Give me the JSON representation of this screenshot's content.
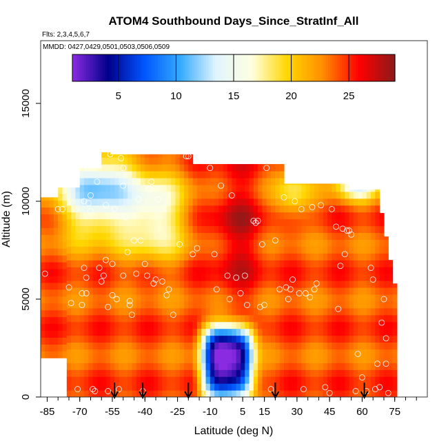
{
  "chart_data": {
    "type": "heatmap",
    "title": "ATOM4 Southbound Days_Since_StratInf_All",
    "subtitle_flights": "Flts: 2,3,4,5,6,7",
    "subtitle_dates": "MMDD: 0427,0429,0501,0503,0506,0509",
    "xlabel": "Latitude (deg N)",
    "ylabel": "Altitude (m)",
    "xlim": [
      -88,
      90
    ],
    "ylim": [
      0,
      17500
    ],
    "x_ticks": [
      -85,
      -70,
      -55,
      -40,
      -25,
      -10,
      5,
      15,
      30,
      45,
      60,
      75
    ],
    "x_tick_labels": [
      "-85",
      "-70",
      "-55",
      "-40",
      "-25",
      "-10",
      "5",
      "15",
      "30",
      "45",
      "60",
      "75"
    ],
    "y_ticks": [
      0,
      5000,
      10000,
      15000
    ],
    "y_tick_labels": [
      "0",
      "5000",
      "10000",
      "15000"
    ],
    "colorbar": {
      "range": [
        1,
        29
      ],
      "ticks": [
        5,
        10,
        15,
        20,
        25
      ],
      "tick_labels": [
        "5",
        "10",
        "15",
        "20",
        "25"
      ],
      "colors": [
        "#8a2be2",
        "#00008b",
        "#0055ff",
        "#33aaff",
        "#e0f4ff",
        "#ffffe0",
        "#ffd700",
        "#ff8c00",
        "#ff0000",
        "#8b1a1a"
      ]
    },
    "arrow_latitudes": [
      -54,
      -41,
      -20,
      20,
      61
    ],
    "field_description_values": {
      "upper_left_values": 13,
      "background": 24,
      "core_high": 27,
      "tropical_low_minimum": 3
    },
    "obs_points": [
      [
        -86,
        6300
      ],
      [
        -80,
        9600
      ],
      [
        -78,
        9600
      ],
      [
        -75,
        5600
      ],
      [
        -74,
        4800
      ],
      [
        -71,
        400
      ],
      [
        -69,
        5300
      ],
      [
        -69,
        4700
      ],
      [
        -68,
        10000
      ],
      [
        -68,
        6600
      ],
      [
        -67,
        6100
      ],
      [
        -67,
        5300
      ],
      [
        -66,
        9900
      ],
      [
        -65,
        10300
      ],
      [
        -65,
        9500
      ],
      [
        -64,
        400
      ],
      [
        -63,
        300
      ],
      [
        -62,
        11000
      ],
      [
        -61,
        6600
      ],
      [
        -60,
        5900
      ],
      [
        -59,
        6200
      ],
      [
        -58,
        9800
      ],
      [
        -58,
        7000
      ],
      [
        -57,
        4600
      ],
      [
        -57,
        300
      ],
      [
        -56,
        12400
      ],
      [
        -55,
        6800
      ],
      [
        -55,
        5200
      ],
      [
        -54,
        9600
      ],
      [
        -53,
        5000
      ],
      [
        -52,
        400
      ],
      [
        -51,
        12200
      ],
      [
        -50,
        11700
      ],
      [
        -50,
        10800
      ],
      [
        -50,
        6200
      ],
      [
        -49,
        9200
      ],
      [
        -48,
        7400
      ],
      [
        -47,
        4900
      ],
      [
        -47,
        4700
      ],
      [
        -46,
        4200
      ],
      [
        -45,
        8000
      ],
      [
        -44,
        6300
      ],
      [
        -43,
        10100
      ],
      [
        -42,
        8000
      ],
      [
        -41,
        300
      ],
      [
        -40,
        6800
      ],
      [
        -39,
        6200
      ],
      [
        -38,
        10600
      ],
      [
        -37,
        11000
      ],
      [
        -36,
        5800
      ],
      [
        -35,
        6000
      ],
      [
        -34,
        10100
      ],
      [
        -32,
        5900
      ],
      [
        -30,
        5200
      ],
      [
        -29,
        5500
      ],
      [
        -27,
        4200
      ],
      [
        -24,
        7800
      ],
      [
        -21,
        12300
      ],
      [
        -20,
        12300
      ],
      [
        -18,
        7300
      ],
      [
        -16,
        7600
      ],
      [
        -12,
        200
      ],
      [
        -10,
        11700
      ],
      [
        -8,
        7300
      ],
      [
        -7,
        5500
      ],
      [
        -5,
        10800
      ],
      [
        -2,
        6200
      ],
      [
        -1,
        5000
      ],
      [
        0,
        10300
      ],
      [
        2,
        6100
      ],
      [
        4,
        5300
      ],
      [
        6,
        6200
      ],
      [
        7,
        4700
      ],
      [
        10,
        9000
      ],
      [
        11,
        8900
      ],
      [
        12,
        9000
      ],
      [
        13,
        4600
      ],
      [
        14,
        7800
      ],
      [
        15,
        4700
      ],
      [
        16,
        11700
      ],
      [
        18,
        400
      ],
      [
        20,
        8000
      ],
      [
        22,
        5500
      ],
      [
        24,
        10200
      ],
      [
        25,
        5600
      ],
      [
        26,
        5000
      ],
      [
        27,
        5500
      ],
      [
        28,
        6000
      ],
      [
        29,
        10000
      ],
      [
        31,
        5300
      ],
      [
        32,
        9600
      ],
      [
        33,
        400
      ],
      [
        34,
        5300
      ],
      [
        36,
        5100
      ],
      [
        37,
        9700
      ],
      [
        38,
        5500
      ],
      [
        39,
        5800
      ],
      [
        41,
        9800
      ],
      [
        43,
        500
      ],
      [
        45,
        200
      ],
      [
        46,
        9600
      ],
      [
        48,
        8700
      ],
      [
        49,
        4500
      ],
      [
        50,
        6700
      ],
      [
        51,
        8600
      ],
      [
        52,
        7300
      ],
      [
        53,
        8500
      ],
      [
        54,
        8500
      ],
      [
        55,
        8300
      ],
      [
        57,
        300
      ],
      [
        58,
        2200
      ],
      [
        60,
        1000
      ],
      [
        62,
        300
      ],
      [
        64,
        6600
      ],
      [
        65,
        6000
      ],
      [
        66,
        400
      ],
      [
        67,
        1700
      ],
      [
        68,
        500
      ],
      [
        69,
        3800
      ],
      [
        70,
        5000
      ],
      [
        71,
        3000
      ],
      [
        71,
        1700
      ],
      [
        72,
        200
      ]
    ]
  }
}
